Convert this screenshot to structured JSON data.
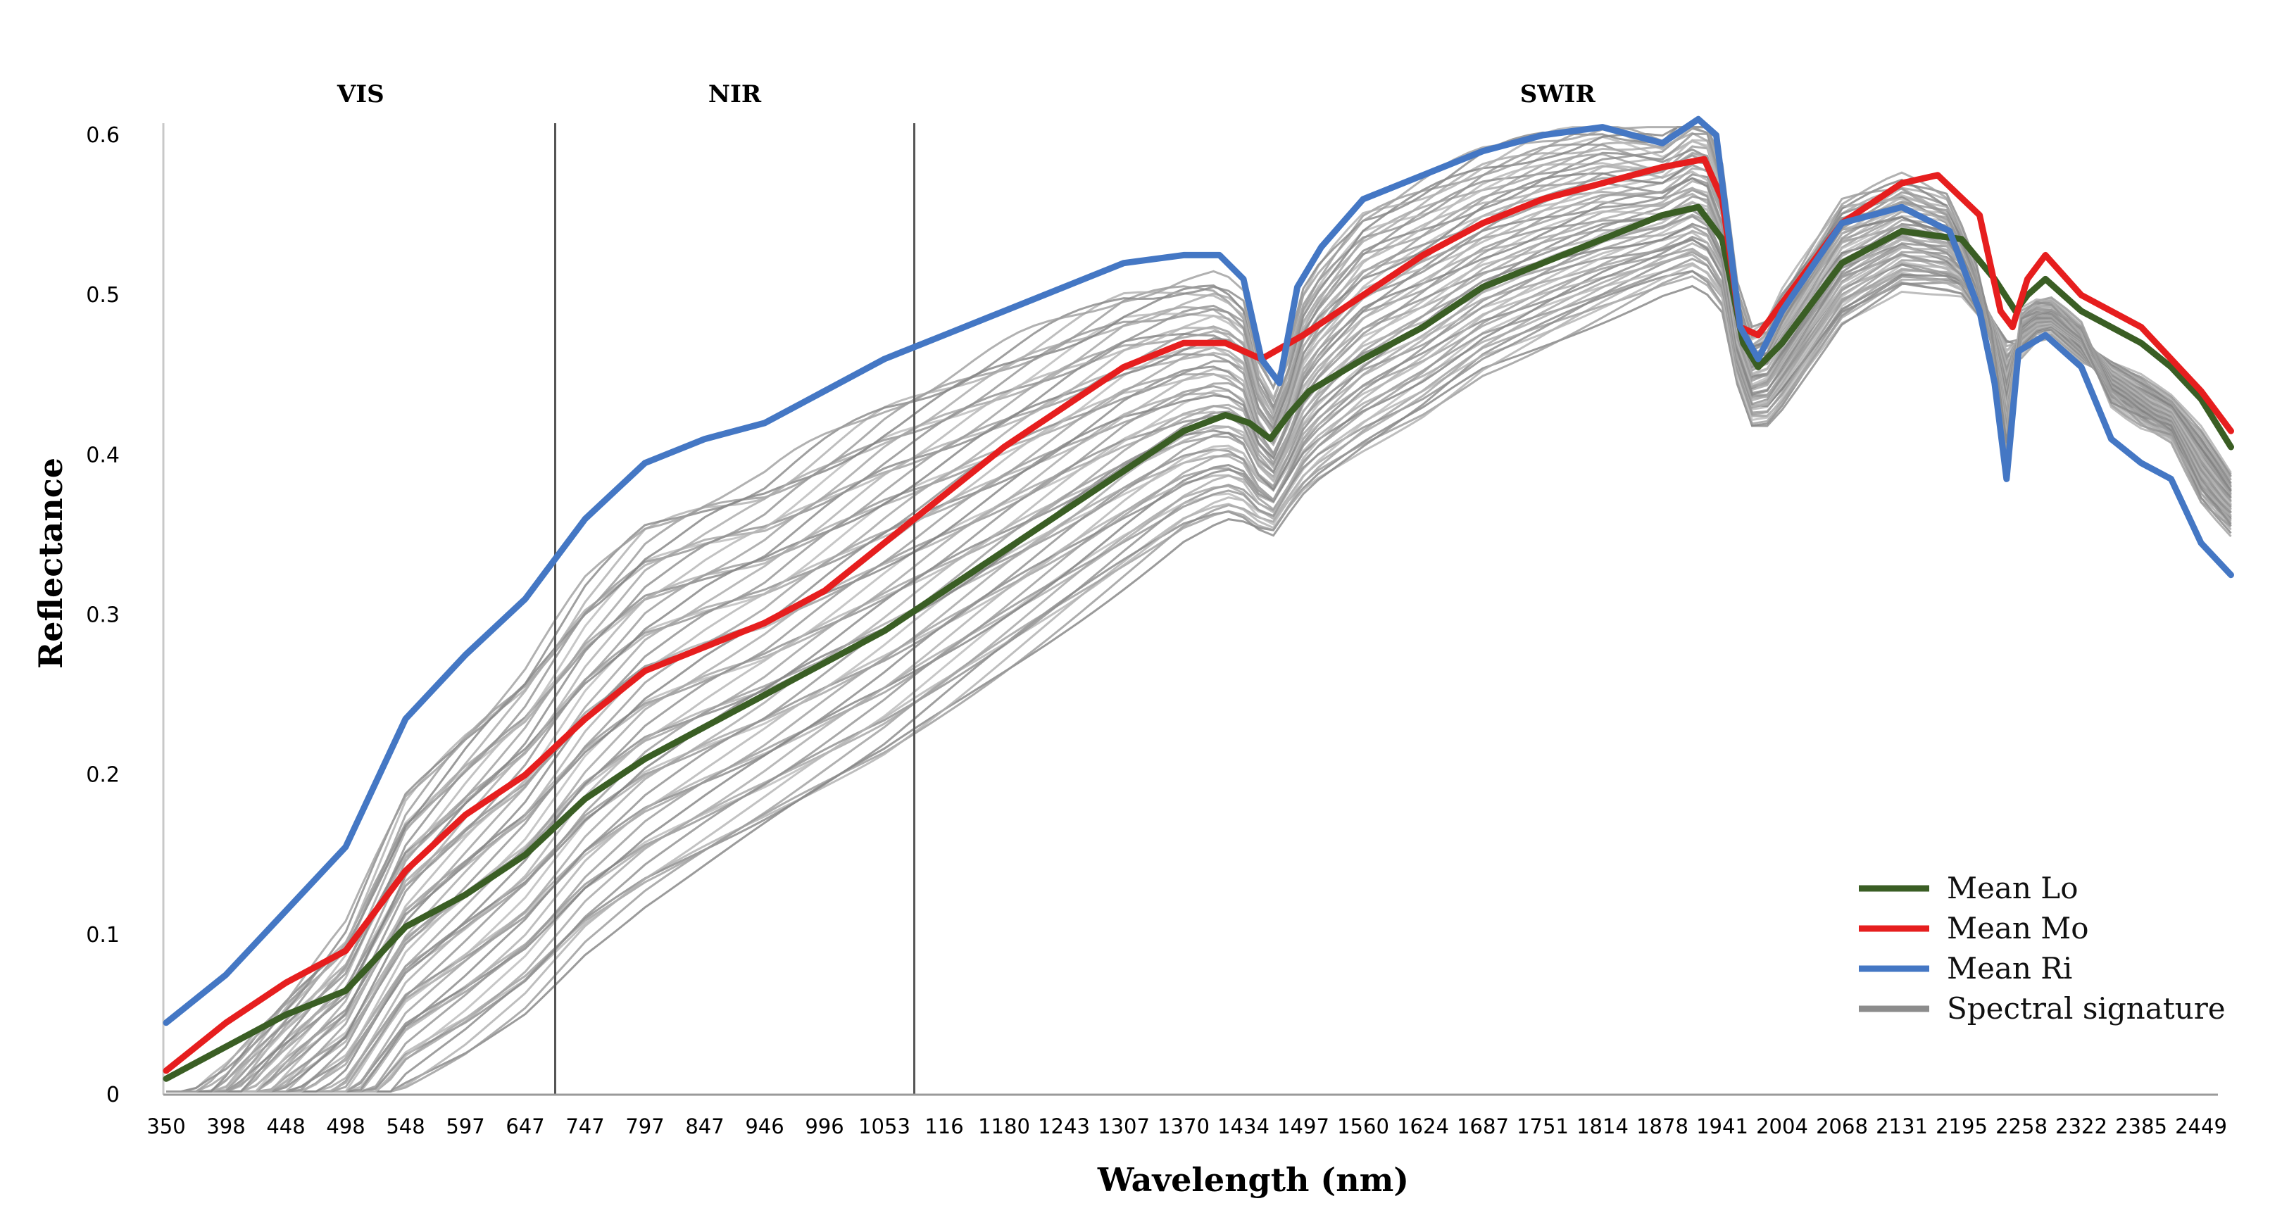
{
  "chart_data": {
    "type": "line",
    "title": "",
    "xlabel": "Wavelength (nm)",
    "ylabel": "Reflectance",
    "ylim": [
      0,
      0.6
    ],
    "yticks": [
      "0",
      "0.1",
      "0.2",
      "0.3",
      "0.4",
      "0.5",
      "0.6"
    ],
    "categories": [
      "350",
      "398",
      "448",
      "498",
      "548",
      "597",
      "647",
      "747",
      "797",
      "847",
      "946",
      "996",
      "1053",
      "116",
      "1180",
      "1243",
      "1307",
      "1370",
      "1434",
      "1497",
      "1560",
      "1624",
      "1687",
      "1751",
      "1814",
      "1878",
      "1941",
      "2004",
      "2068",
      "2131",
      "2195",
      "2258",
      "2322",
      "2385",
      "2449"
    ],
    "regions": [
      {
        "label": "VIS",
        "start": 0,
        "end": 6.5
      },
      {
        "label": "NIR",
        "start": 6.5,
        "end": 12.5
      },
      {
        "label": "SWIR",
        "start": 12.5,
        "end": 34
      }
    ],
    "series": [
      {
        "name": "Mean Lo",
        "color": "#3a5e24",
        "points": [
          [
            0,
            0.01
          ],
          [
            1,
            0.03
          ],
          [
            2,
            0.05
          ],
          [
            3,
            0.065
          ],
          [
            4,
            0.105
          ],
          [
            5,
            0.125
          ],
          [
            6,
            0.15
          ],
          [
            7,
            0.185
          ],
          [
            8,
            0.21
          ],
          [
            9,
            0.23
          ],
          [
            10,
            0.25
          ],
          [
            11,
            0.27
          ],
          [
            12,
            0.29
          ],
          [
            13,
            0.315
          ],
          [
            14,
            0.34
          ],
          [
            15,
            0.365
          ],
          [
            16,
            0.39
          ],
          [
            17,
            0.415
          ],
          [
            17.7,
            0.425
          ],
          [
            18.1,
            0.42
          ],
          [
            18.45,
            0.41
          ],
          [
            18.75,
            0.425
          ],
          [
            19.1,
            0.44
          ],
          [
            20,
            0.46
          ],
          [
            21,
            0.48
          ],
          [
            22,
            0.505
          ],
          [
            23,
            0.52
          ],
          [
            24,
            0.535
          ],
          [
            25,
            0.55
          ],
          [
            25.6,
            0.555
          ],
          [
            26,
            0.535
          ],
          [
            26.35,
            0.47
          ],
          [
            26.6,
            0.455
          ],
          [
            27,
            0.47
          ],
          [
            28,
            0.52
          ],
          [
            29,
            0.54
          ],
          [
            30,
            0.535
          ],
          [
            30.55,
            0.51
          ],
          [
            30.9,
            0.49
          ],
          [
            31.1,
            0.5
          ],
          [
            31.4,
            0.51
          ],
          [
            32,
            0.49
          ],
          [
            33,
            0.47
          ],
          [
            33.5,
            0.455
          ],
          [
            34,
            0.435
          ],
          [
            34.5,
            0.405
          ]
        ]
      },
      {
        "name": "Mean Mo",
        "color": "#e61e1e",
        "points": [
          [
            0,
            0.015
          ],
          [
            1,
            0.045
          ],
          [
            2,
            0.07
          ],
          [
            3,
            0.09
          ],
          [
            4,
            0.14
          ],
          [
            5,
            0.175
          ],
          [
            6,
            0.2
          ],
          [
            7,
            0.235
          ],
          [
            8,
            0.265
          ],
          [
            9,
            0.28
          ],
          [
            10,
            0.295
          ],
          [
            11,
            0.315
          ],
          [
            12,
            0.345
          ],
          [
            13,
            0.375
          ],
          [
            14,
            0.405
          ],
          [
            15,
            0.43
          ],
          [
            16,
            0.455
          ],
          [
            17,
            0.47
          ],
          [
            17.7,
            0.47
          ],
          [
            18.3,
            0.46
          ],
          [
            19,
            0.475
          ],
          [
            20,
            0.5
          ],
          [
            21,
            0.525
          ],
          [
            22,
            0.545
          ],
          [
            23,
            0.56
          ],
          [
            24,
            0.57
          ],
          [
            25,
            0.58
          ],
          [
            25.7,
            0.585
          ],
          [
            26,
            0.56
          ],
          [
            26.3,
            0.48
          ],
          [
            26.6,
            0.475
          ],
          [
            27,
            0.495
          ],
          [
            28,
            0.545
          ],
          [
            29,
            0.57
          ],
          [
            29.6,
            0.575
          ],
          [
            30.3,
            0.55
          ],
          [
            30.65,
            0.49
          ],
          [
            30.85,
            0.48
          ],
          [
            31.1,
            0.51
          ],
          [
            31.4,
            0.525
          ],
          [
            32,
            0.5
          ],
          [
            33,
            0.48
          ],
          [
            33.5,
            0.46
          ],
          [
            34,
            0.44
          ],
          [
            34.5,
            0.415
          ]
        ]
      },
      {
        "name": "Mean Ri",
        "color": "#4477c4",
        "points": [
          [
            0,
            0.045
          ],
          [
            1,
            0.075
          ],
          [
            2,
            0.115
          ],
          [
            3,
            0.155
          ],
          [
            4,
            0.235
          ],
          [
            5,
            0.275
          ],
          [
            6,
            0.31
          ],
          [
            7,
            0.36
          ],
          [
            8,
            0.395
          ],
          [
            9,
            0.41
          ],
          [
            10,
            0.42
          ],
          [
            11,
            0.44
          ],
          [
            12,
            0.46
          ],
          [
            13,
            0.475
          ],
          [
            14,
            0.49
          ],
          [
            15,
            0.505
          ],
          [
            16,
            0.52
          ],
          [
            17,
            0.525
          ],
          [
            17.6,
            0.525
          ],
          [
            18,
            0.51
          ],
          [
            18.3,
            0.46
          ],
          [
            18.6,
            0.445
          ],
          [
            18.9,
            0.505
          ],
          [
            19.3,
            0.53
          ],
          [
            20,
            0.56
          ],
          [
            21,
            0.575
          ],
          [
            22,
            0.59
          ],
          [
            23,
            0.6
          ],
          [
            24,
            0.605
          ],
          [
            25,
            0.595
          ],
          [
            25.6,
            0.61
          ],
          [
            25.9,
            0.6
          ],
          [
            26.3,
            0.48
          ],
          [
            26.6,
            0.46
          ],
          [
            27,
            0.49
          ],
          [
            28,
            0.545
          ],
          [
            29,
            0.555
          ],
          [
            29.8,
            0.54
          ],
          [
            30.3,
            0.49
          ],
          [
            30.55,
            0.445
          ],
          [
            30.75,
            0.385
          ],
          [
            30.95,
            0.465
          ],
          [
            31.4,
            0.475
          ],
          [
            32,
            0.455
          ],
          [
            32.5,
            0.41
          ],
          [
            33,
            0.395
          ],
          [
            33.5,
            0.385
          ],
          [
            34,
            0.345
          ],
          [
            34.5,
            0.325
          ]
        ]
      }
    ],
    "legend": {
      "placement": "bottom-right",
      "entries": [
        {
          "label": "Mean Lo",
          "color": "#3a5e24"
        },
        {
          "label": "Mean Mo",
          "color": "#e61e1e"
        },
        {
          "label": "Mean Ri",
          "color": "#4477c4"
        },
        {
          "label": "Spectral signature",
          "color": "#8c8c8c"
        }
      ]
    }
  }
}
